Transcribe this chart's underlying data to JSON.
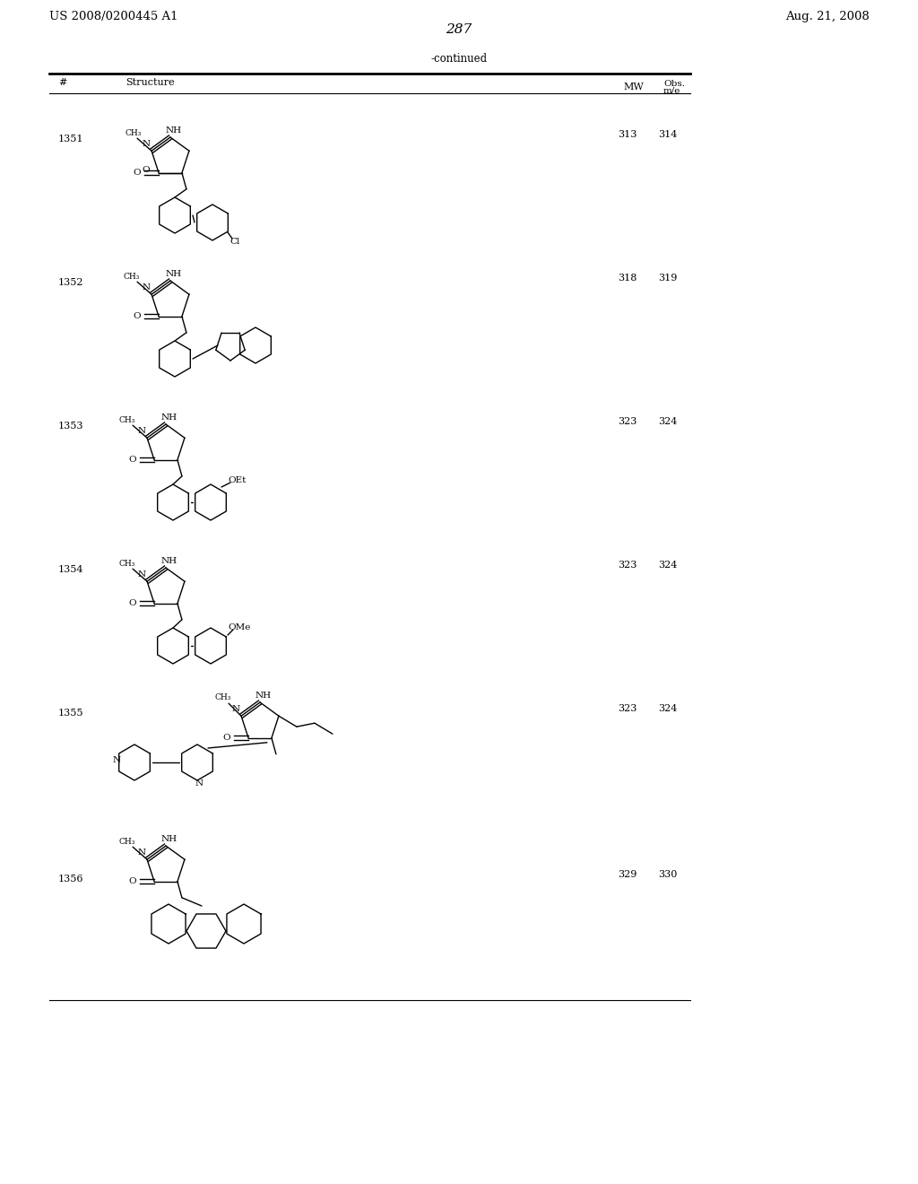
{
  "title_left": "US 2008/0200445 A1",
  "title_right": "Aug. 21, 2008",
  "page_number": "287",
  "continued_label": "-continued",
  "table_headers": [
    "#",
    "Structure",
    "MW",
    "Obs.\nm/e"
  ],
  "rows": [
    {
      "num": "1351",
      "mw": "313",
      "obs": "314"
    },
    {
      "num": "1352",
      "mw": "318",
      "obs": "319"
    },
    {
      "num": "1353",
      "mw": "323",
      "obs": "324"
    },
    {
      "num": "1354",
      "mw": "323",
      "obs": "324"
    },
    {
      "num": "1355",
      "mw": "323",
      "obs": "324"
    },
    {
      "num": "1356",
      "mw": "329",
      "obs": "330"
    }
  ],
  "bg_color": "#ffffff",
  "text_color": "#000000",
  "font_size_header": 9,
  "font_size_body": 9,
  "font_size_title": 10,
  "font_size_page": 12
}
